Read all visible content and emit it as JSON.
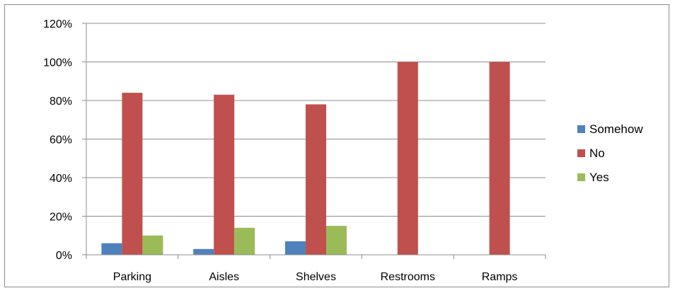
{
  "chart_data": {
    "type": "bar",
    "categories": [
      "Parking",
      "Aisles",
      "Shelves",
      "Restrooms",
      "Ramps"
    ],
    "series": [
      {
        "name": "Somehow",
        "values": [
          6,
          3,
          7,
          0,
          0
        ],
        "color": "#4f81bd"
      },
      {
        "name": "No",
        "values": [
          84,
          83,
          78,
          100,
          100
        ],
        "color": "#c0504d"
      },
      {
        "name": "Yes",
        "values": [
          10,
          14,
          15,
          0,
          0
        ],
        "color": "#9bbb59"
      }
    ],
    "yticks": [
      "0%",
      "20%",
      "40%",
      "60%",
      "80%",
      "100%",
      "120%"
    ],
    "ylim": [
      0,
      120
    ],
    "ystep": 20,
    "grid": true,
    "legend_position": "right",
    "gridline_color": "#8c8c8c",
    "axis_color": "#8c8c8c"
  }
}
